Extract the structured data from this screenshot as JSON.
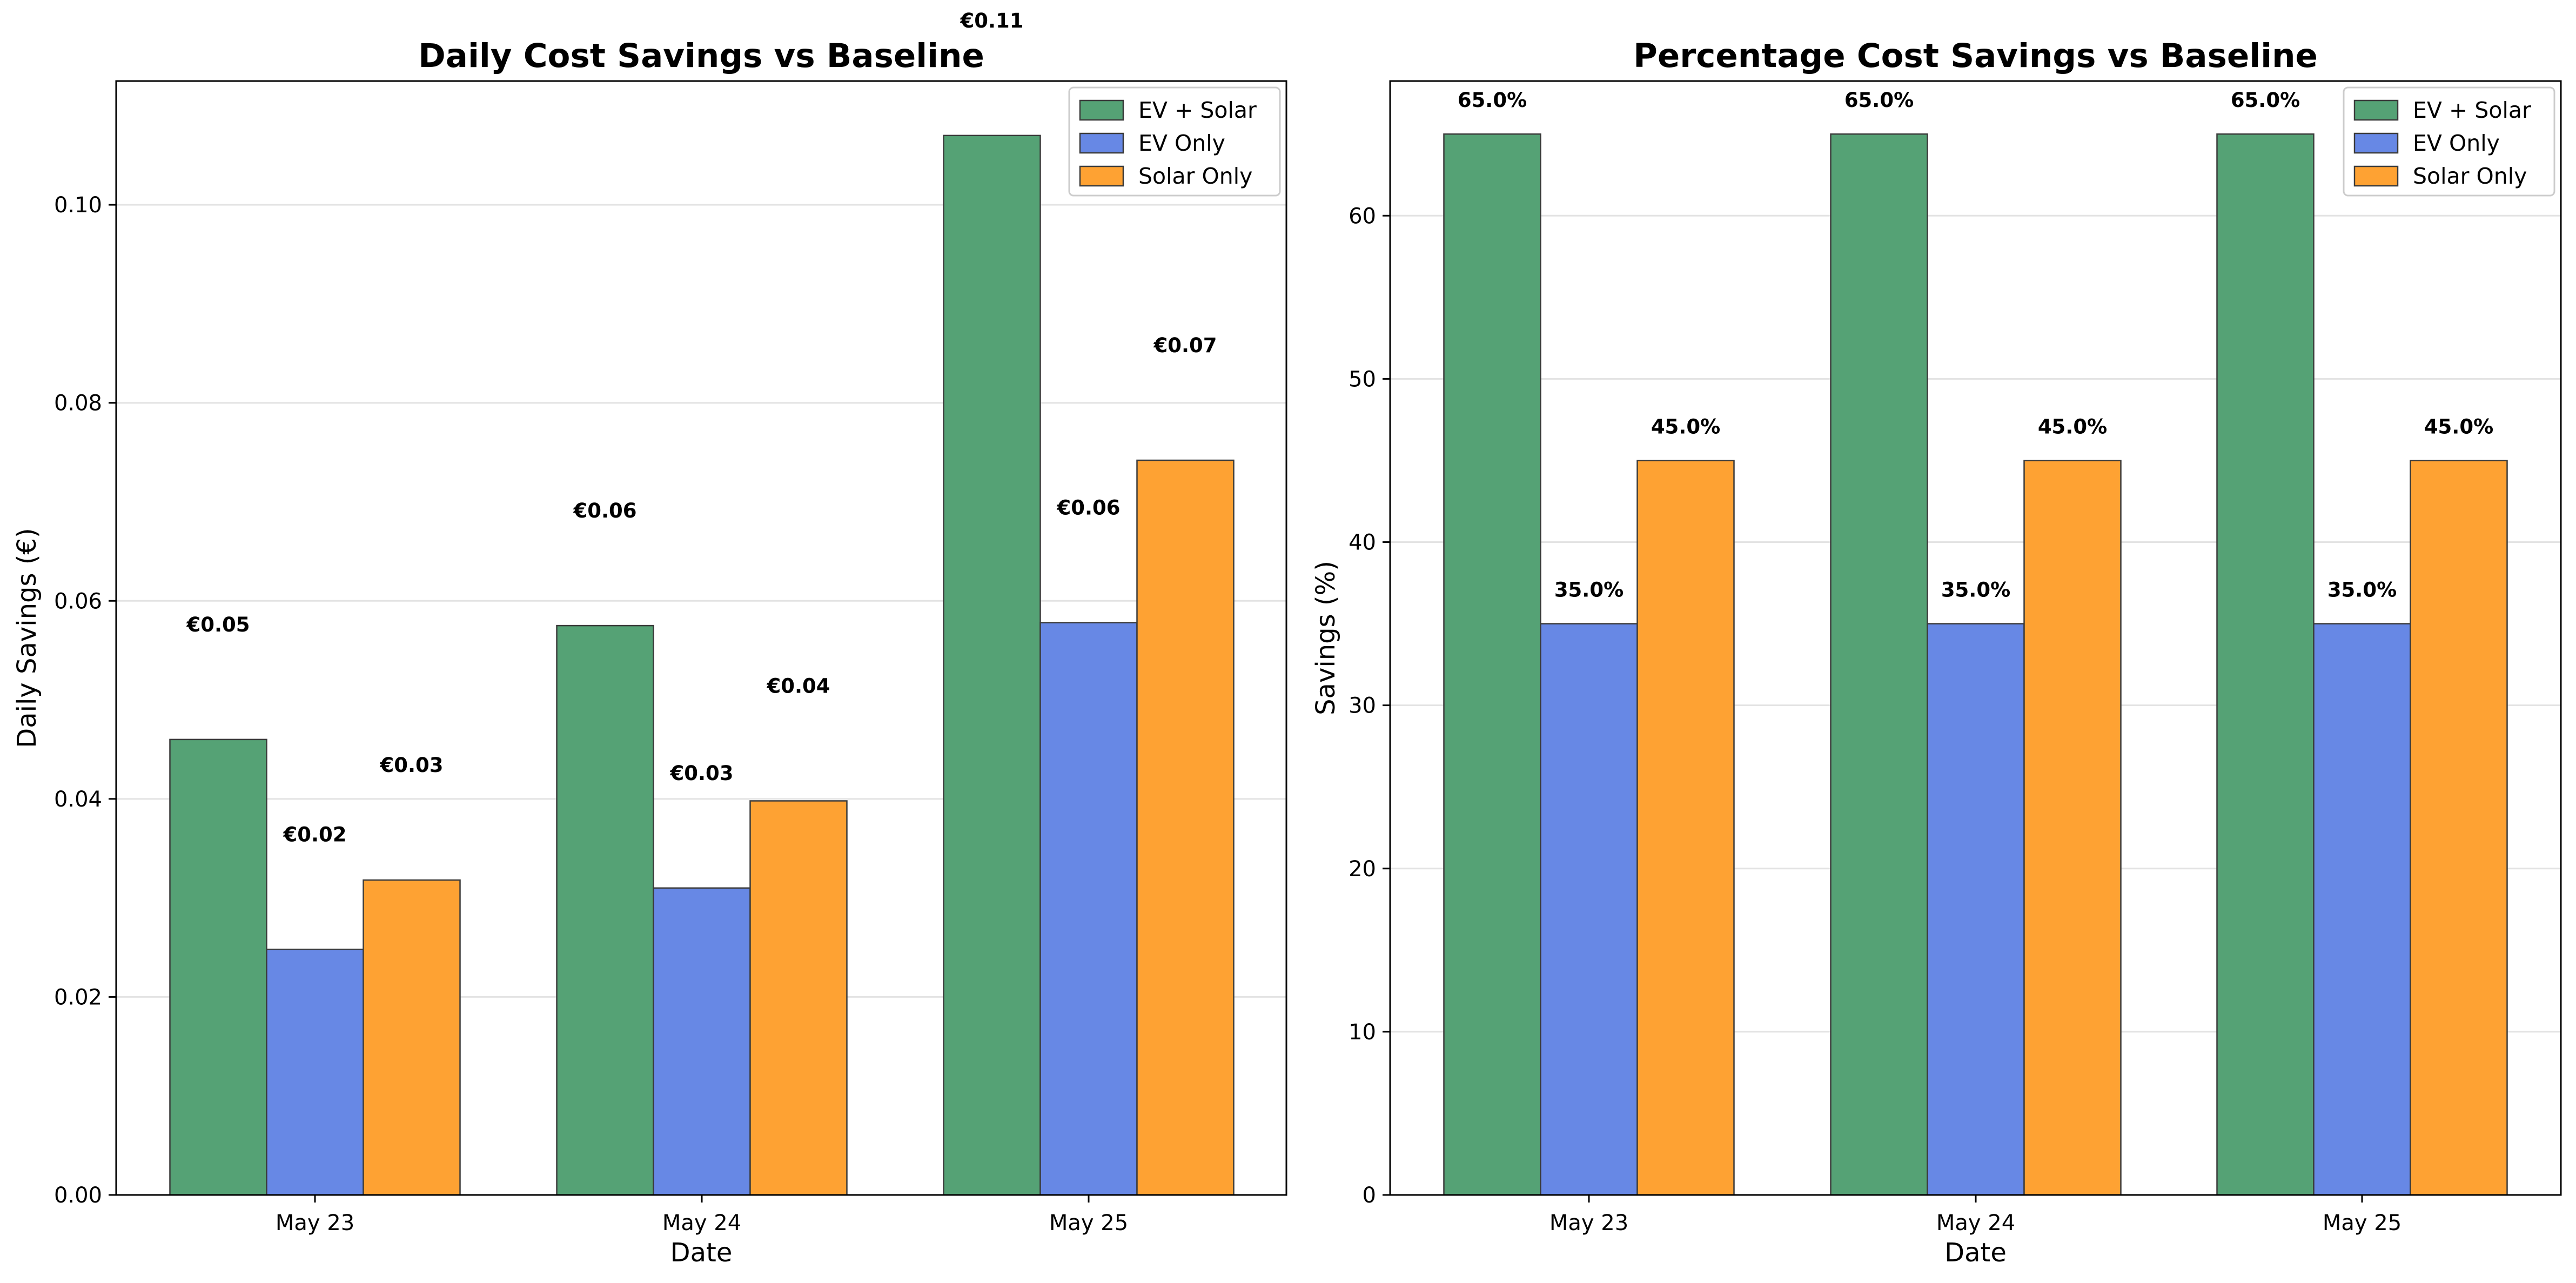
{
  "chart_data": [
    {
      "type": "bar",
      "title": "Daily Cost Savings vs Baseline",
      "xlabel": "Date",
      "ylabel": "Daily Savings (€)",
      "categories": [
        "May 23",
        "May 24",
        "May 25"
      ],
      "series": [
        {
          "name": "EV + Solar",
          "color": "#55a275",
          "values": [
            0.046,
            0.0575,
            0.107
          ],
          "labels": [
            "€0.05",
            "€0.06",
            "€0.11"
          ]
        },
        {
          "name": "EV Only",
          "color": "#6788e5",
          "values": [
            0.0248,
            0.031,
            0.0578
          ],
          "labels": [
            "€0.02",
            "€0.03",
            "€0.06"
          ]
        },
        {
          "name": "Solar Only",
          "color": "#fea233",
          "values": [
            0.0318,
            0.0398,
            0.0742
          ],
          "labels": [
            "€0.03",
            "€0.04",
            "€0.07"
          ]
        }
      ],
      "ylim": [
        0,
        0.1125
      ],
      "yticks": [
        "0.00",
        "0.02",
        "0.04",
        "0.06",
        "0.08",
        "0.10"
      ],
      "grid": "y",
      "legend": "top-right"
    },
    {
      "type": "bar",
      "title": "Percentage Cost Savings vs Baseline",
      "xlabel": "Date",
      "ylabel": "Savings (%)",
      "categories": [
        "May 23",
        "May 24",
        "May 25"
      ],
      "series": [
        {
          "name": "EV + Solar",
          "color": "#55a275",
          "values": [
            65.0,
            65.0,
            65.0
          ],
          "labels": [
            "65.0%",
            "65.0%",
            "65.0%"
          ]
        },
        {
          "name": "EV Only",
          "color": "#6788e5",
          "values": [
            35.0,
            35.0,
            35.0
          ],
          "labels": [
            "35.0%",
            "35.0%",
            "35.0%"
          ]
        },
        {
          "name": "Solar Only",
          "color": "#fea233",
          "values": [
            45.0,
            45.0,
            45.0
          ],
          "labels": [
            "45.0%",
            "45.0%",
            "45.0%"
          ]
        }
      ],
      "ylim": [
        0,
        68.25
      ],
      "yticks": [
        "0",
        "10",
        "20",
        "30",
        "40",
        "50",
        "60"
      ],
      "grid": "y",
      "legend": "top-right"
    }
  ]
}
